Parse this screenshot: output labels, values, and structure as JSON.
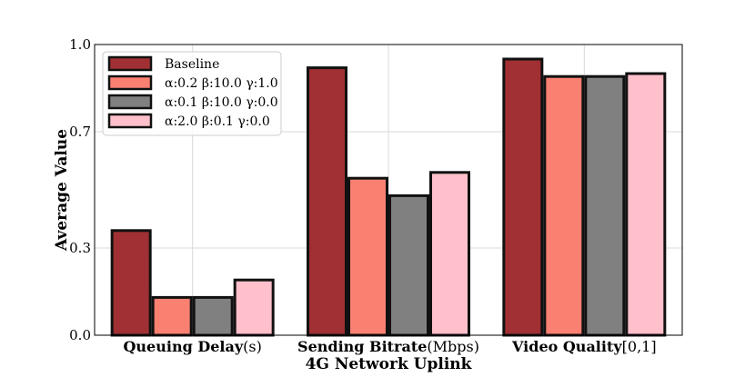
{
  "chart_data": {
    "type": "bar",
    "title": "",
    "xlabel": "4G Network Uplink",
    "ylabel": "Average Value",
    "ylim": [
      0.0,
      1.0
    ],
    "yticks": [
      0.0,
      0.3,
      0.7,
      1.0
    ],
    "ytick_labels": [
      "0.0",
      "0.3",
      "0.7",
      "1.0"
    ],
    "grid": true,
    "legend_position": "top-left",
    "categories": [
      {
        "bold": "Queuing Delay",
        "suffix": "(s)"
      },
      {
        "bold": "Sending Bitrate",
        "suffix": "(Mbps)"
      },
      {
        "bold": "Video Quality",
        "suffix": "[0,1]"
      }
    ],
    "series": [
      {
        "name": "Baseline",
        "color": "#a03033",
        "values": [
          0.36,
          0.92,
          0.95
        ]
      },
      {
        "name": "α:0.2 β:10.0 γ:1.0",
        "color": "#fa8072",
        "values": [
          0.13,
          0.54,
          0.89
        ]
      },
      {
        "name": "α:0.1 β:10.0 γ:0.0",
        "color": "#808080",
        "values": [
          0.13,
          0.48,
          0.89
        ]
      },
      {
        "name": "α:2.0 β:0.1 γ:0.0",
        "color": "#ffc0cb",
        "values": [
          0.19,
          0.56,
          0.9
        ]
      }
    ]
  }
}
